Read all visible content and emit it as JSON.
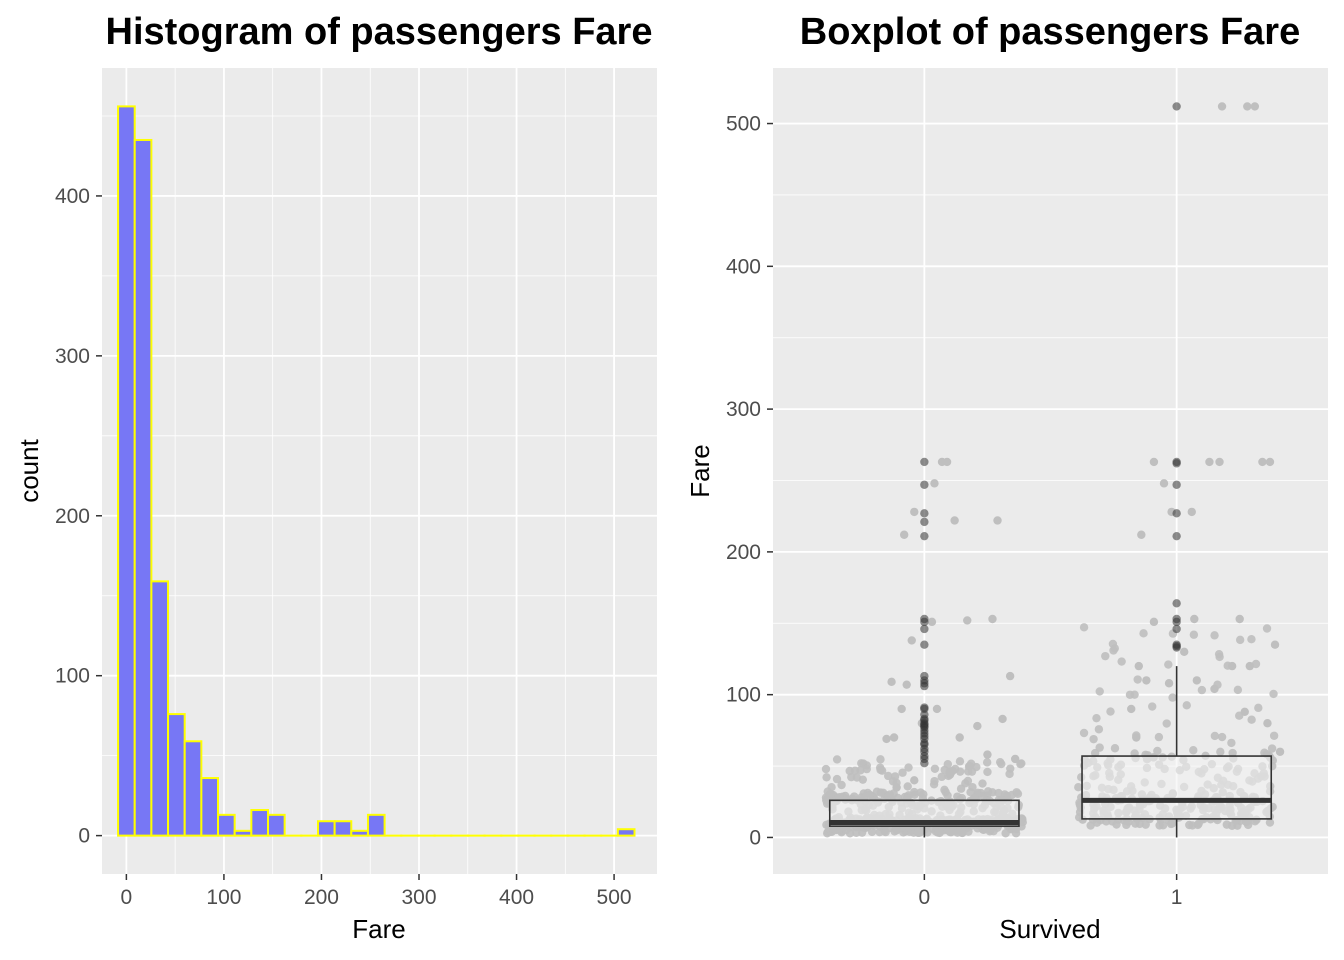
{
  "chart_data": [
    {
      "type": "bar",
      "subtype": "histogram",
      "title": "Histogram of passengers Fare",
      "xlabel": "Fare",
      "ylabel": "count",
      "xlim": [
        -25,
        544
      ],
      "ylim": [
        -24,
        480
      ],
      "x_ticks": [
        0,
        100,
        200,
        300,
        400,
        500
      ],
      "y_ticks": [
        0,
        100,
        200,
        300,
        400
      ],
      "grid": true,
      "bin_width": 17.08,
      "bin_starts": [
        -8.54,
        8.54,
        25.62,
        42.7,
        59.78,
        76.86,
        93.94,
        111.02,
        128.1,
        145.18,
        162.26,
        179.34,
        196.42,
        213.5,
        230.58,
        247.66,
        264.74,
        281.82,
        298.9,
        315.98,
        333.06,
        350.14,
        367.22,
        384.3,
        401.38,
        418.46,
        435.54,
        452.62,
        469.7,
        486.78,
        503.86
      ],
      "values": [
        456,
        435,
        159,
        76,
        59,
        36,
        13,
        3,
        16,
        13,
        0,
        0,
        9,
        9,
        3,
        13,
        0,
        0,
        0,
        0,
        0,
        0,
        0,
        0,
        0,
        0,
        0,
        0,
        0,
        0,
        4
      ],
      "colors": {
        "fill": "#7777f5",
        "outline": "#ffff00",
        "panel": "#ebebeb",
        "grid": "#ffffff"
      }
    },
    {
      "type": "box",
      "title": "Boxplot of passengers Fare",
      "xlabel": "Survived",
      "ylabel": "Fare",
      "categories": [
        "0",
        "1"
      ],
      "ylim": [
        -25.6,
        538.9
      ],
      "y_ticks": [
        0,
        100,
        200,
        300,
        400,
        500
      ],
      "grid": true,
      "boxes": [
        {
          "category": "0",
          "q1": 7.9,
          "median": 10.5,
          "q3": 26.0,
          "whisker_low": 0,
          "whisker_high": 26.0,
          "outliers": [
            52,
            55,
            57,
            60,
            62,
            65,
            66,
            69,
            71,
            73,
            75,
            77,
            78,
            79,
            80,
            82,
            83,
            86,
            90,
            91,
            106,
            108,
            110,
            113,
            135,
            146,
            151,
            153,
            211,
            221,
            227,
            247,
            263
          ]
        },
        {
          "category": "1",
          "q1": 13.0,
          "median": 26.0,
          "q3": 57.0,
          "whisker_low": 0,
          "whisker_high": 120.0,
          "outliers": [
            133,
            134,
            135,
            146,
            151,
            153,
            164,
            211,
            227,
            247,
            262,
            263,
            512
          ]
        }
      ],
      "jitter_points": {
        "0": [
          [
            0.85,
            69
          ],
          [
            0.88,
            70
          ],
          [
            0.87,
            109
          ],
          [
            0.93,
            107
          ],
          [
            0.95,
            138
          ],
          [
            0.92,
            212
          ],
          [
            0.96,
            228
          ],
          [
            1.04,
            248
          ],
          [
            1.07,
            263
          ],
          [
            1.09,
            263
          ],
          [
            1.12,
            222
          ],
          [
            1.17,
            152
          ],
          [
            1.27,
            153
          ],
          [
            1.34,
            113
          ],
          [
            1.29,
            222
          ],
          [
            1.03,
            151
          ],
          [
            1.05,
            90
          ],
          [
            0.91,
            90
          ],
          [
            0.99,
            80
          ],
          [
            1.14,
            70
          ],
          [
            1.21,
            78
          ],
          [
            1.31,
            83
          ],
          [
            1.36,
            55
          ],
          [
            1.25,
            58
          ],
          [
            1.18,
            50
          ],
          [
            1.1,
            46
          ],
          [
            0.96,
            40
          ],
          [
            0.89,
            35
          ]
        ],
        "1": [
          [
            1.86,
            212
          ],
          [
            1.91,
            263
          ],
          [
            1.95,
            248
          ],
          [
            1.98,
            228
          ],
          [
            2.06,
            228
          ],
          [
            2.07,
            153
          ],
          [
            2.13,
            263
          ],
          [
            2.17,
            263
          ],
          [
            2.25,
            153
          ],
          [
            2.34,
            263
          ],
          [
            2.37,
            263
          ],
          [
            2.39,
            135
          ],
          [
            2.29,
            120
          ],
          [
            2.22,
            120
          ],
          [
            2.08,
            110
          ],
          [
            2.03,
            130
          ],
          [
            1.91,
            151
          ],
          [
            1.85,
            120
          ],
          [
            1.88,
            110
          ],
          [
            1.97,
            108
          ],
          [
            2.15,
            104
          ],
          [
            2.27,
            88
          ],
          [
            2.36,
            80
          ],
          [
            2.41,
            60
          ],
          [
            1.82,
            90
          ],
          [
            1.84,
            70
          ],
          [
            2.18,
            512
          ],
          [
            2.28,
            512
          ],
          [
            2.31,
            512
          ]
        ]
      },
      "colors": {
        "points": "#bfbfbf",
        "outliers": "#333333",
        "box_fill": "#f2f2f2",
        "box_line": "#333333",
        "panel": "#ebebeb",
        "grid": "#ffffff"
      }
    }
  ]
}
